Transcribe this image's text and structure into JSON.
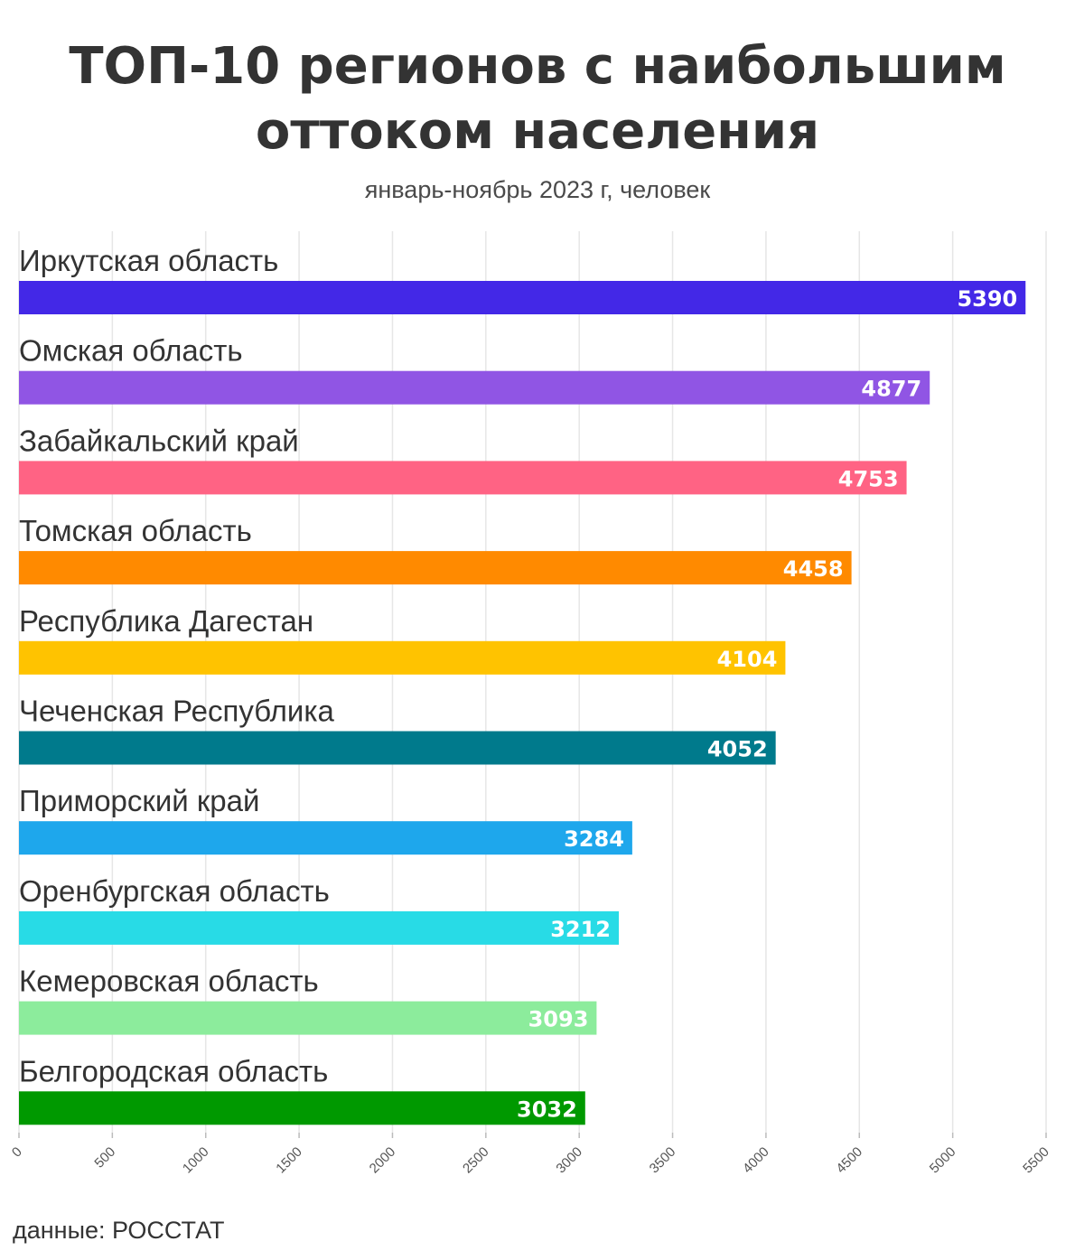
{
  "title_line1": "ТОП-10 регионов с наибольшим",
  "title_line2": "оттоком населения",
  "subtitle": "январь-ноябрь 2023 г, человек",
  "source": "данные: РОССТАТ",
  "chart_data": {
    "type": "bar",
    "orientation": "horizontal",
    "title": "ТОП-10 регионов с наибольшим оттоком населения",
    "subtitle": "январь-ноябрь 2023 г, человек",
    "categories": [
      "Иркутская область",
      "Омская область",
      "Забайкальский край",
      "Томская область",
      "Республика Дагестан",
      "Чеченская Республика",
      "Приморский край",
      "Оренбургская область",
      "Кемеровская область",
      "Белгородская область"
    ],
    "values": [
      5390,
      4877,
      4753,
      4458,
      4104,
      4052,
      3284,
      3212,
      3093,
      3032
    ],
    "colors": [
      "#4328e7",
      "#9055e4",
      "#ff6384",
      "#ff8a00",
      "#ffc300",
      "#007a8c",
      "#1ea7ec",
      "#28dbe6",
      "#8cec9c",
      "#009900"
    ],
    "xlim": [
      0,
      5500
    ],
    "xticks": [
      0,
      500,
      1000,
      1500,
      2000,
      2500,
      3000,
      3500,
      4000,
      4500,
      5000,
      5500
    ],
    "grid": true
  }
}
